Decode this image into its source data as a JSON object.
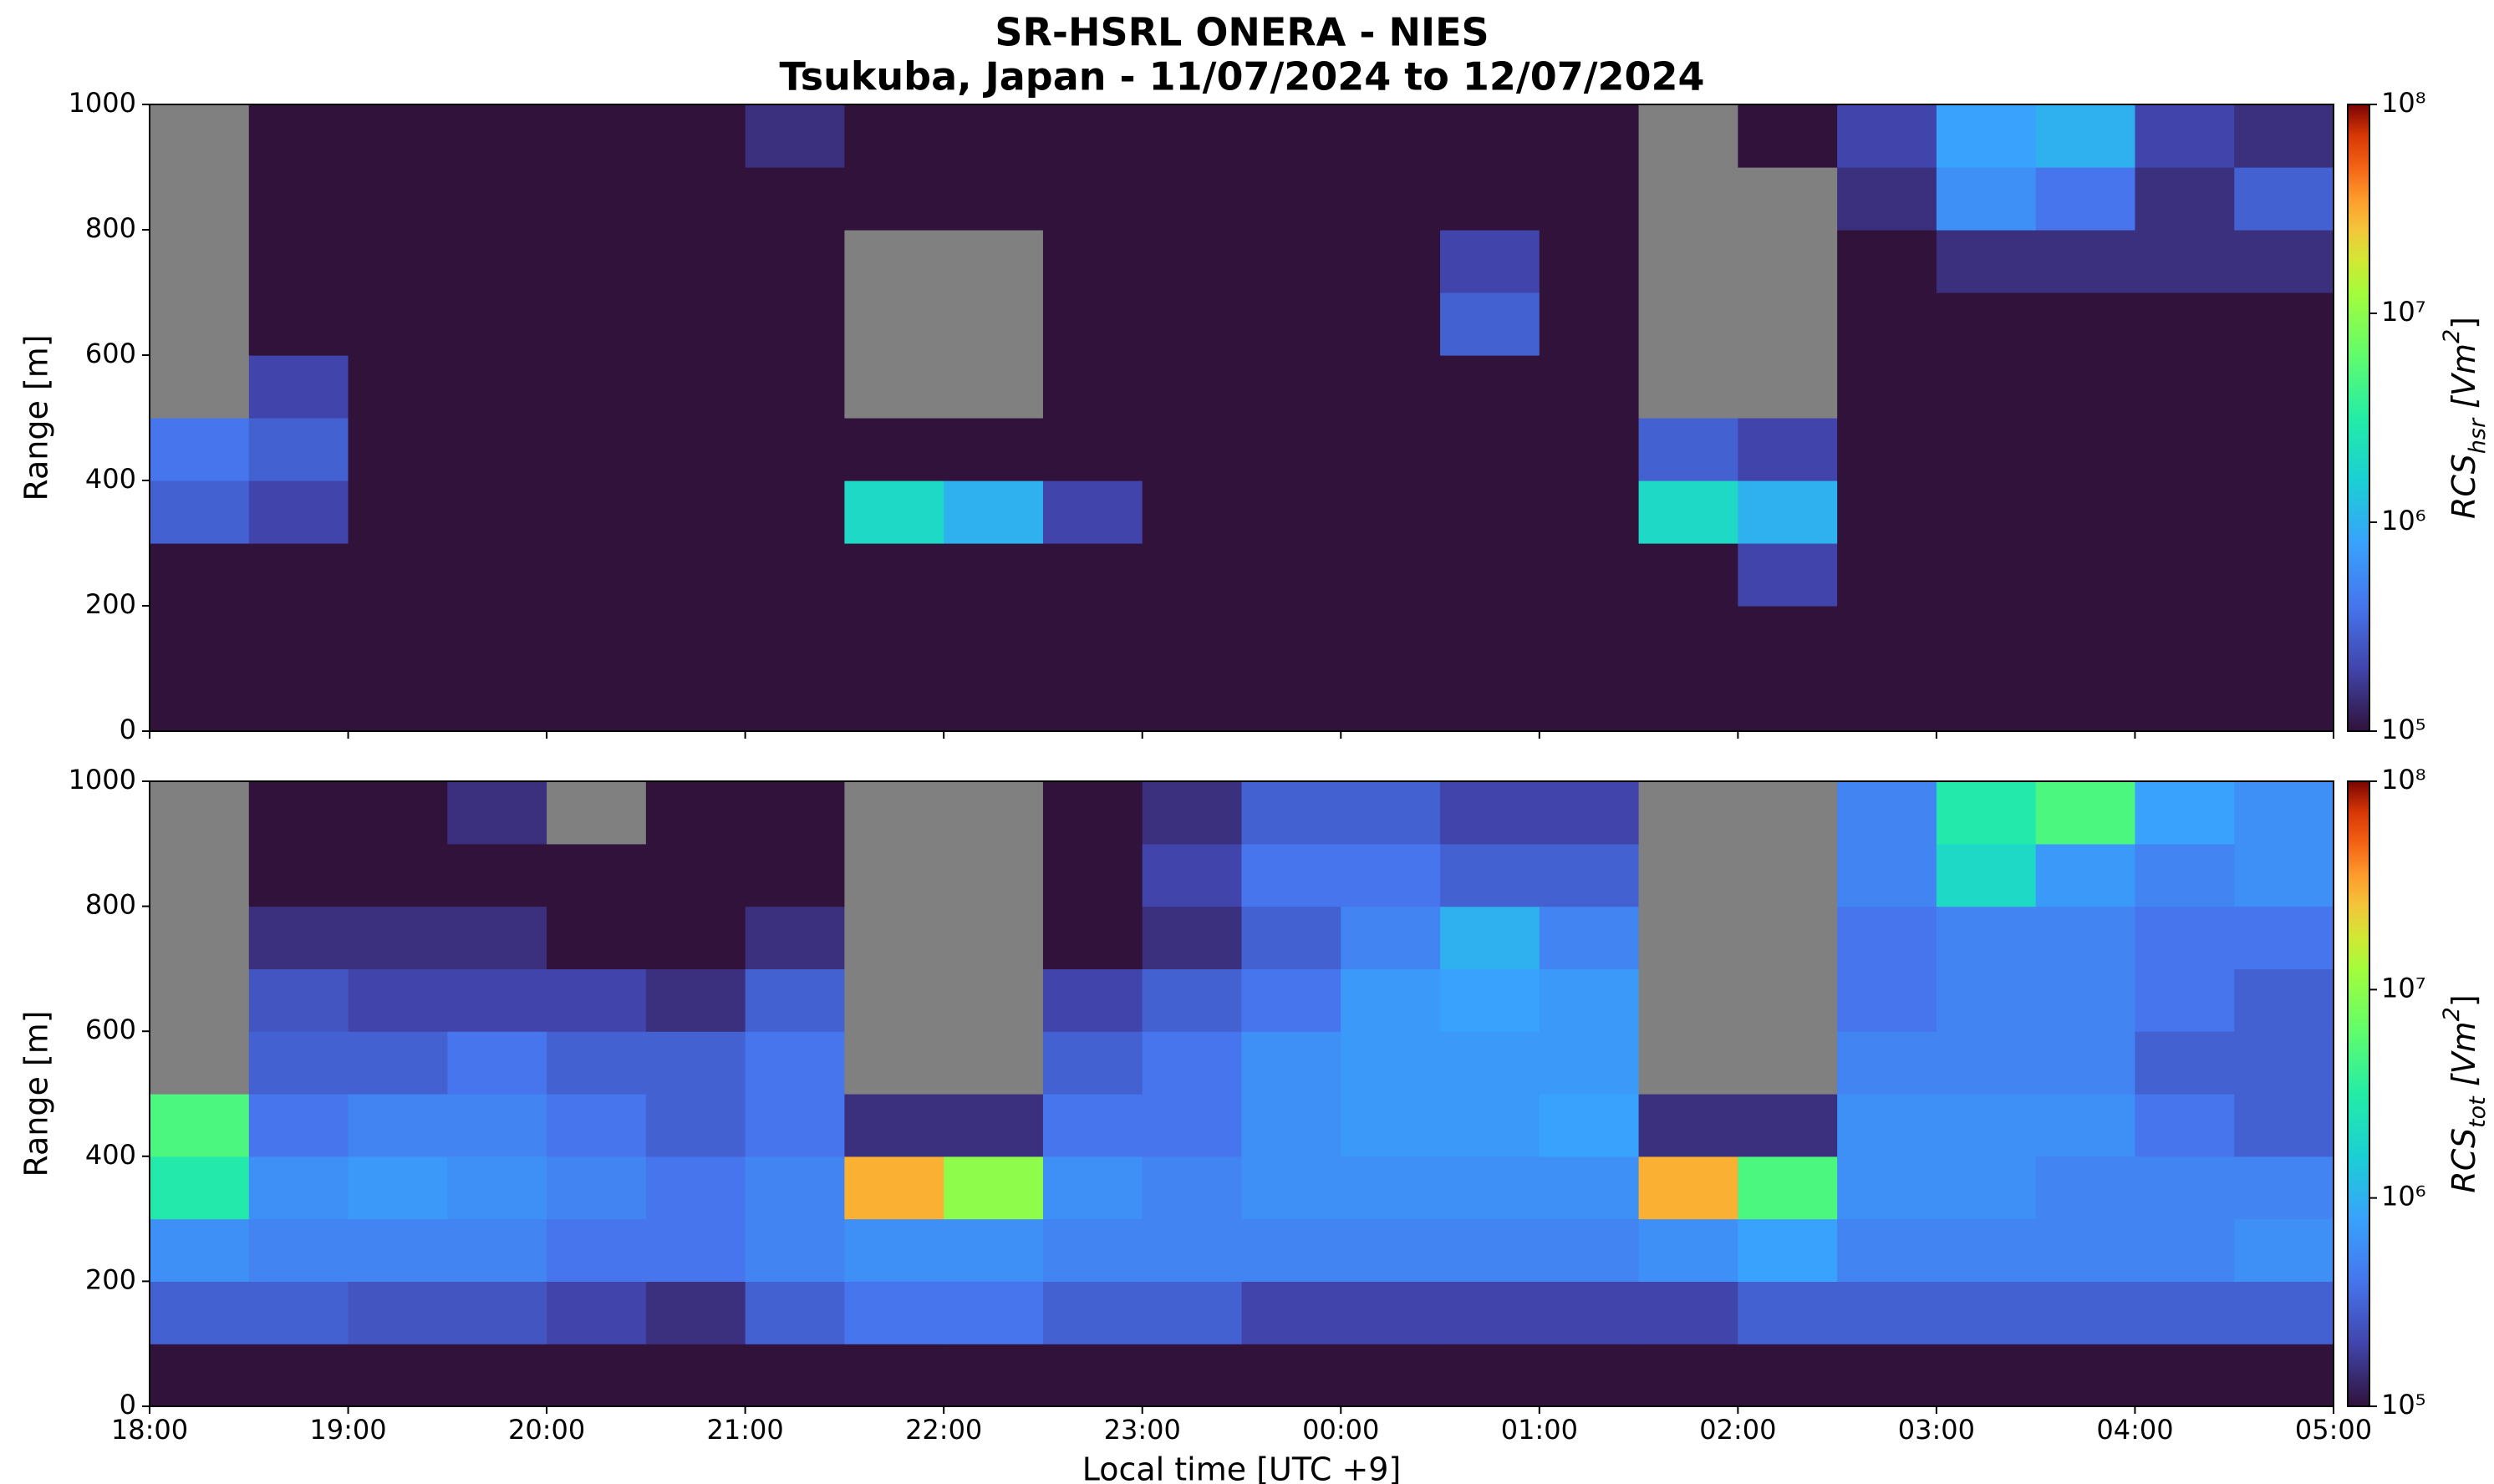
{
  "title": [
    "SR-HSRL ONERA - NIES",
    "Tsukuba, Japan - 11/07/2024 to 12/07/2024"
  ],
  "chart_data": [
    {
      "type": "heatmap",
      "ylabel": "Range [m]",
      "colorbar_label": [
        "RCS",
        "hsr",
        " [Vm",
        "2",
        "]"
      ],
      "xbins": [
        18,
        18.5,
        19,
        19.5,
        20,
        20.5,
        21,
        21.5,
        22,
        22.5,
        23,
        23.5,
        24,
        24.5,
        25,
        25.5,
        26,
        26.5,
        27,
        27.5,
        28,
        28.5,
        29
      ],
      "ybins": [
        0,
        100,
        200,
        300,
        400,
        500,
        600,
        700,
        800,
        900,
        1000
      ],
      "xlim": [
        18,
        29
      ],
      "xticks": [
        18,
        19,
        20,
        21,
        22,
        23,
        24,
        25,
        26,
        27,
        28,
        29
      ],
      "ylim": [
        0,
        1000
      ],
      "yticks": [
        0,
        200,
        400,
        600,
        800,
        1000
      ],
      "zscale": "log",
      "zlim": [
        100000.0,
        100000000.0
      ],
      "zticks": [
        {
          "value": 100000.0,
          "label": "10⁵"
        },
        {
          "value": 1000000.0,
          "label": "10⁶"
        },
        {
          "value": 10000000.0,
          "label": "10⁷"
        },
        {
          "value": 100000000.0,
          "label": "10⁸"
        }
      ],
      "colormap": "turbo",
      "null_color": "#808080",
      "values": [
        [
          100000.0,
          100000.0,
          100000.0,
          100000.0,
          100000.0,
          100000.0,
          100000.0,
          100000.0,
          100000.0,
          100000.0,
          100000.0,
          100000.0,
          100000.0,
          100000.0,
          100000.0,
          100000.0,
          100000.0,
          100000.0,
          100000.0,
          100000.0,
          100000.0,
          100000.0
        ],
        [
          100000.0,
          100000.0,
          100000.0,
          100000.0,
          100000.0,
          100000.0,
          100000.0,
          100000.0,
          100000.0,
          100000.0,
          100000.0,
          100000.0,
          100000.0,
          100000.0,
          100000.0,
          100000.0,
          100000.0,
          100000.0,
          100000.0,
          100000.0,
          100000.0,
          100000.0
        ],
        [
          100000.0,
          100000.0,
          100000.0,
          100000.0,
          100000.0,
          100000.0,
          100000.0,
          100000.0,
          100000.0,
          100000.0,
          100000.0,
          100000.0,
          100000.0,
          100000.0,
          100000.0,
          100000.0,
          200000.0,
          100000.0,
          100000.0,
          100000.0,
          100000.0,
          100000.0
        ],
        [
          300000.0,
          200000.0,
          100000.0,
          100000.0,
          100000.0,
          100000.0,
          100000.0,
          2000000.0,
          1000000.0,
          200000.0,
          100000.0,
          100000.0,
          100000.0,
          100000.0,
          100000.0,
          2000000.0,
          1000000.0,
          100000.0,
          100000.0,
          100000.0,
          100000.0,
          100000.0
        ],
        [
          400000.0,
          300000.0,
          100000.0,
          100000.0,
          100000.0,
          100000.0,
          100000.0,
          100000.0,
          100000.0,
          100000.0,
          100000.0,
          100000.0,
          100000.0,
          100000.0,
          100000.0,
          300000.0,
          200000.0,
          100000.0,
          100000.0,
          100000.0,
          100000.0,
          100000.0
        ],
        [
          null,
          200000.0,
          100000.0,
          100000.0,
          100000.0,
          100000.0,
          100000.0,
          null,
          null,
          100000.0,
          100000.0,
          100000.0,
          100000.0,
          100000.0,
          100000.0,
          null,
          null,
          100000.0,
          100000.0,
          100000.0,
          100000.0,
          100000.0
        ],
        [
          null,
          100000.0,
          100000.0,
          100000.0,
          100000.0,
          100000.0,
          100000.0,
          null,
          null,
          100000.0,
          100000.0,
          100000.0,
          100000.0,
          300000.0,
          100000.0,
          null,
          null,
          100000.0,
          100000.0,
          100000.0,
          100000.0,
          100000.0
        ],
        [
          null,
          100000.0,
          100000.0,
          100000.0,
          100000.0,
          100000.0,
          100000.0,
          null,
          null,
          100000.0,
          100000.0,
          100000.0,
          100000.0,
          200000.0,
          100000.0,
          null,
          null,
          100000.0,
          150000.0,
          150000.0,
          150000.0,
          150000.0
        ],
        [
          null,
          100000.0,
          100000.0,
          100000.0,
          100000.0,
          100000.0,
          100000.0,
          100000.0,
          100000.0,
          100000.0,
          100000.0,
          100000.0,
          100000.0,
          100000.0,
          100000.0,
          null,
          null,
          150000.0,
          600000.0,
          400000.0,
          150000.0,
          300000.0
        ],
        [
          null,
          100000.0,
          100000.0,
          100000.0,
          100000.0,
          100000.0,
          150000.0,
          100000.0,
          100000.0,
          100000.0,
          100000.0,
          100000.0,
          100000.0,
          100000.0,
          100000.0,
          null,
          100000.0,
          200000.0,
          800000.0,
          1000000.0,
          200000.0,
          150000.0
        ]
      ]
    },
    {
      "type": "heatmap",
      "ylabel": "Range [m]",
      "xlabel": "Local time [UTC +9]",
      "colorbar_label": [
        "RCS",
        "tot",
        " [Vm",
        "2",
        "]"
      ],
      "xbins": [
        18,
        18.5,
        19,
        19.5,
        20,
        20.5,
        21,
        21.5,
        22,
        22.5,
        23,
        23.5,
        24,
        24.5,
        25,
        25.5,
        26,
        26.5,
        27,
        27.5,
        28,
        28.5,
        29
      ],
      "ybins": [
        0,
        100,
        200,
        300,
        400,
        500,
        600,
        700,
        800,
        900,
        1000
      ],
      "xlim": [
        18,
        29
      ],
      "xticks": [
        {
          "value": 18,
          "label": "18:00"
        },
        {
          "value": 19,
          "label": "19:00"
        },
        {
          "value": 20,
          "label": "20:00"
        },
        {
          "value": 21,
          "label": "21:00"
        },
        {
          "value": 22,
          "label": "22:00"
        },
        {
          "value": 23,
          "label": "23:00"
        },
        {
          "value": 24,
          "label": "00:00"
        },
        {
          "value": 25,
          "label": "01:00"
        },
        {
          "value": 26,
          "label": "02:00"
        },
        {
          "value": 27,
          "label": "03:00"
        },
        {
          "value": 28,
          "label": "04:00"
        },
        {
          "value": 29,
          "label": "05:00"
        }
      ],
      "ylim": [
        0,
        1000
      ],
      "yticks": [
        0,
        200,
        400,
        600,
        800,
        1000
      ],
      "zscale": "log",
      "zlim": [
        100000.0,
        100000000.0
      ],
      "zticks": [
        {
          "value": 100000.0,
          "label": "10⁵"
        },
        {
          "value": 1000000.0,
          "label": "10⁶"
        },
        {
          "value": 10000000.0,
          "label": "10⁷"
        },
        {
          "value": 100000000.0,
          "label": "10⁸"
        }
      ],
      "colormap": "turbo",
      "null_color": "#808080",
      "values": [
        [
          100000.0,
          100000.0,
          100000.0,
          100000.0,
          100000.0,
          100000.0,
          100000.0,
          100000.0,
          100000.0,
          100000.0,
          100000.0,
          100000.0,
          100000.0,
          100000.0,
          100000.0,
          100000.0,
          100000.0,
          100000.0,
          100000.0,
          100000.0,
          100000.0,
          100000.0
        ],
        [
          300000.0,
          300000.0,
          250000.0,
          250000.0,
          200000.0,
          150000.0,
          300000.0,
          400000.0,
          400000.0,
          300000.0,
          300000.0,
          200000.0,
          200000.0,
          200000.0,
          200000.0,
          200000.0,
          300000.0,
          300000.0,
          300000.0,
          300000.0,
          300000.0,
          300000.0
        ],
        [
          600000.0,
          500000.0,
          500000.0,
          500000.0,
          400000.0,
          400000.0,
          500000.0,
          600000.0,
          600000.0,
          500000.0,
          500000.0,
          500000.0,
          500000.0,
          500000.0,
          500000.0,
          600000.0,
          800000.0,
          500000.0,
          500000.0,
          500000.0,
          500000.0,
          600000.0
        ],
        [
          3000000.0,
          600000.0,
          700000.0,
          600000.0,
          500000.0,
          400000.0,
          500000.0,
          30000000.0,
          10000000.0,
          600000.0,
          500000.0,
          600000.0,
          600000.0,
          600000.0,
          600000.0,
          30000000.0,
          5000000.0,
          600000.0,
          600000.0,
          500000.0,
          500000.0,
          500000.0
        ],
        [
          5000000.0,
          400000.0,
          500000.0,
          500000.0,
          400000.0,
          300000.0,
          400000.0,
          150000.0,
          150000.0,
          400000.0,
          400000.0,
          600000.0,
          700000.0,
          700000.0,
          800000.0,
          150000.0,
          150000.0,
          600000.0,
          600000.0,
          600000.0,
          400000.0,
          300000.0
        ],
        [
          null,
          300000.0,
          300000.0,
          400000.0,
          300000.0,
          300000.0,
          400000.0,
          null,
          null,
          300000.0,
          400000.0,
          600000.0,
          700000.0,
          700000.0,
          700000.0,
          null,
          null,
          500000.0,
          500000.0,
          500000.0,
          300000.0,
          300000.0
        ],
        [
          null,
          250000.0,
          200000.0,
          200000.0,
          200000.0,
          150000.0,
          300000.0,
          null,
          null,
          200000.0,
          300000.0,
          400000.0,
          700000.0,
          800000.0,
          700000.0,
          null,
          null,
          400000.0,
          500000.0,
          500000.0,
          400000.0,
          300000.0
        ],
        [
          null,
          150000.0,
          150000.0,
          150000.0,
          100000.0,
          100000.0,
          150000.0,
          null,
          null,
          100000.0,
          150000.0,
          300000.0,
          500000.0,
          1000000.0,
          500000.0,
          null,
          null,
          400000.0,
          500000.0,
          500000.0,
          400000.0,
          400000.0
        ],
        [
          null,
          100000.0,
          100000.0,
          100000.0,
          100000.0,
          100000.0,
          100000.0,
          null,
          null,
          100000.0,
          200000.0,
          400000.0,
          400000.0,
          300000.0,
          300000.0,
          null,
          null,
          500000.0,
          2000000.0,
          700000.0,
          500000.0,
          600000.0
        ],
        [
          null,
          100000.0,
          100000.0,
          150000.0,
          null,
          100000.0,
          100000.0,
          null,
          null,
          100000.0,
          150000.0,
          300000.0,
          300000.0,
          200000.0,
          200000.0,
          null,
          null,
          500000.0,
          3000000.0,
          5000000.0,
          800000.0,
          600000.0
        ]
      ]
    }
  ]
}
